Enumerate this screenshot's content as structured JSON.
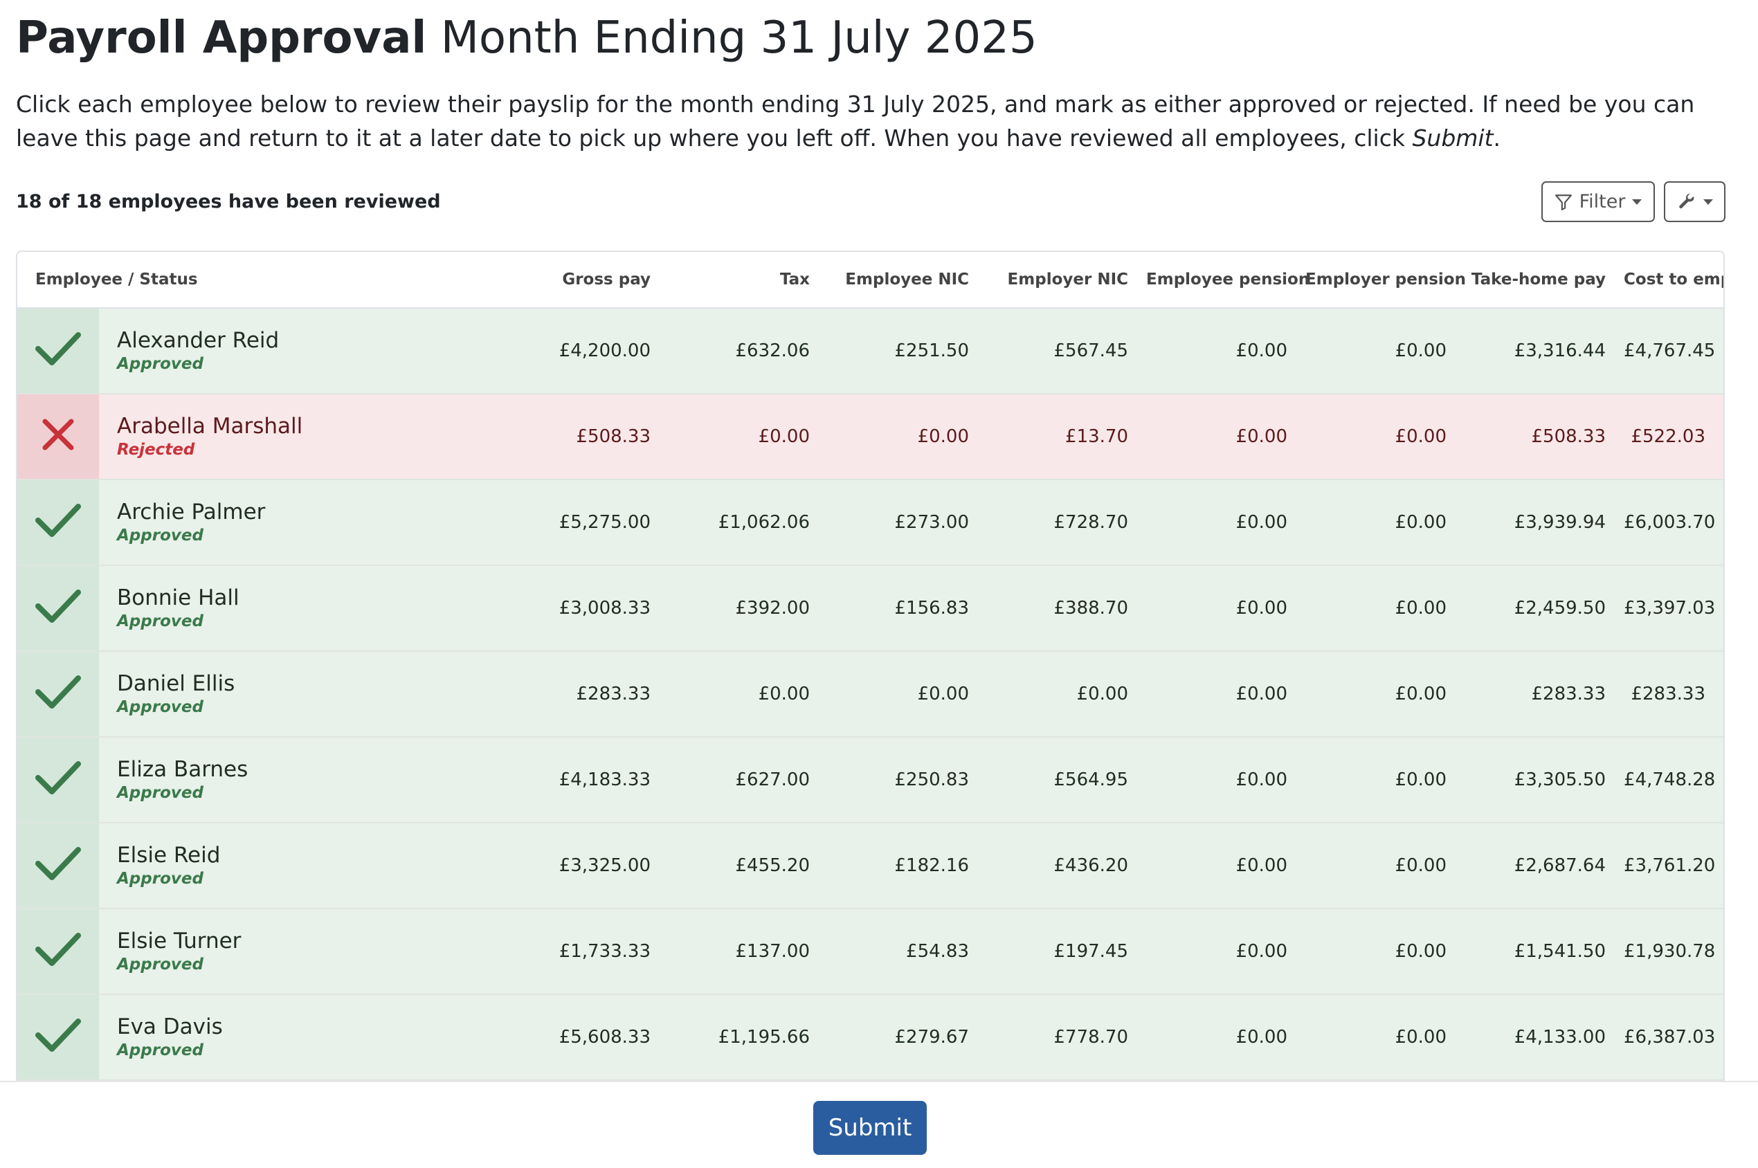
{
  "header": {
    "title_strong": "Payroll Approval",
    "title_rest": "Month Ending 31 July 2025"
  },
  "intro": {
    "text": "Click each employee below to review their payslip for the month ending 31 July 2025, and mark as either approved or rejected. If need be you can leave this page and return to it at a later date to pick up where you left off. When you have reviewed all employees, click ",
    "emphasis": "Submit",
    "end": "."
  },
  "summary": {
    "reviewed": "18 of 18 employees have been reviewed"
  },
  "toolbar": {
    "filter_label": "Filter"
  },
  "table": {
    "headers": [
      "Employee / Status",
      "Gross pay",
      "Tax",
      "Employee NIC",
      "Employer NIC",
      "Employee pension",
      "Employer pension",
      "Take-home pay",
      "Cost to employer"
    ],
    "rows": [
      {
        "name": "Alexander Reid",
        "status": "Approved",
        "state": "approved",
        "values": [
          "£4,200.00",
          "£632.06",
          "£251.50",
          "£567.45",
          "£0.00",
          "£0.00",
          "£3,316.44",
          "£4,767.45"
        ]
      },
      {
        "name": "Arabella Marshall",
        "status": "Rejected",
        "state": "rejected",
        "values": [
          "£508.33",
          "£0.00",
          "£0.00",
          "£13.70",
          "£0.00",
          "£0.00",
          "£508.33",
          "£522.03"
        ]
      },
      {
        "name": "Archie Palmer",
        "status": "Approved",
        "state": "approved",
        "values": [
          "£5,275.00",
          "£1,062.06",
          "£273.00",
          "£728.70",
          "£0.00",
          "£0.00",
          "£3,939.94",
          "£6,003.70"
        ]
      },
      {
        "name": "Bonnie Hall",
        "status": "Approved",
        "state": "approved",
        "values": [
          "£3,008.33",
          "£392.00",
          "£156.83",
          "£388.70",
          "£0.00",
          "£0.00",
          "£2,459.50",
          "£3,397.03"
        ]
      },
      {
        "name": "Daniel Ellis",
        "status": "Approved",
        "state": "approved",
        "values": [
          "£283.33",
          "£0.00",
          "£0.00",
          "£0.00",
          "£0.00",
          "£0.00",
          "£283.33",
          "£283.33"
        ]
      },
      {
        "name": "Eliza Barnes",
        "status": "Approved",
        "state": "approved",
        "values": [
          "£4,183.33",
          "£627.00",
          "£250.83",
          "£564.95",
          "£0.00",
          "£0.00",
          "£3,305.50",
          "£4,748.28"
        ]
      },
      {
        "name": "Elsie Reid",
        "status": "Approved",
        "state": "approved",
        "values": [
          "£3,325.00",
          "£455.20",
          "£182.16",
          "£436.20",
          "£0.00",
          "£0.00",
          "£2,687.64",
          "£3,761.20"
        ]
      },
      {
        "name": "Elsie Turner",
        "status": "Approved",
        "state": "approved",
        "values": [
          "£1,733.33",
          "£137.00",
          "£54.83",
          "£197.45",
          "£0.00",
          "£0.00",
          "£1,541.50",
          "£1,930.78"
        ]
      },
      {
        "name": "Eva Davis",
        "status": "Approved",
        "state": "approved",
        "values": [
          "£5,608.33",
          "£1,195.66",
          "£279.67",
          "£778.70",
          "£0.00",
          "£0.00",
          "£4,133.00",
          "£6,387.03"
        ]
      }
    ]
  },
  "footer": {
    "submit_label": "Submit"
  },
  "colors": {
    "approved": "#3b7a4b",
    "rejected": "#c8323a",
    "primary": "#2a5d9f"
  }
}
